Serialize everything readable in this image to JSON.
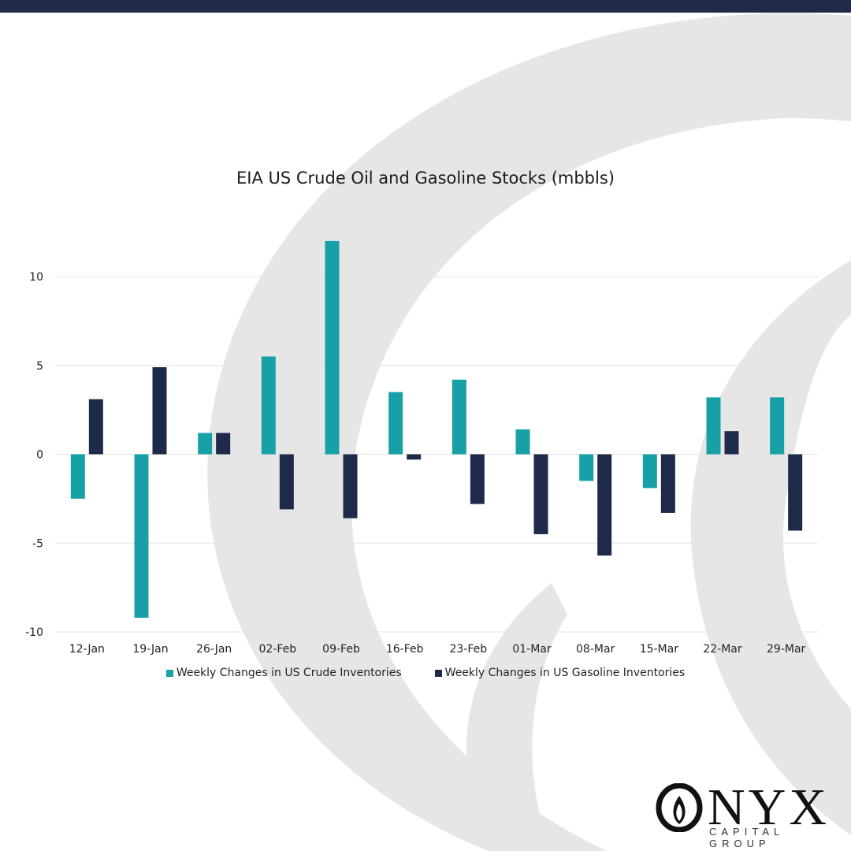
{
  "title": "EIA US Crude Oil and Gasoline Stocks (mbbls)",
  "logo": {
    "word": "NYX",
    "subtitle": "CAPITAL GROUP",
    "icon": "onyx-flame-o-icon"
  },
  "colors": {
    "crude": "#17a1a7",
    "gasoline": "#1e2a4a",
    "grid": "#e3e3e3",
    "topbar": "#1e2a47"
  },
  "chart_data": {
    "type": "bar",
    "categories": [
      "12-Jan",
      "19-Jan",
      "26-Jan",
      "02-Feb",
      "09-Feb",
      "16-Feb",
      "23-Feb",
      "01-Mar",
      "08-Mar",
      "15-Mar",
      "22-Mar",
      "29-Mar"
    ],
    "series": [
      {
        "name": "Weekly Changes in US Crude Inventories",
        "values": [
          -2.5,
          -9.2,
          1.2,
          5.5,
          12.0,
          3.5,
          4.2,
          1.4,
          -1.5,
          -1.9,
          3.2,
          3.2
        ]
      },
      {
        "name": "Weekly Changes in US Gasoline Inventories",
        "values": [
          3.1,
          4.9,
          1.2,
          -3.1,
          -3.6,
          -0.3,
          -2.8,
          -4.5,
          -5.7,
          -3.3,
          1.3,
          -4.3
        ]
      }
    ],
    "title": "EIA US Crude Oil and Gasoline Stocks (mbbls)",
    "xlabel": "",
    "ylabel": "",
    "ylim": [
      -10,
      10
    ],
    "yticks": [
      10,
      5,
      0,
      -5,
      -10
    ],
    "grid": true,
    "legend": "bottom"
  }
}
